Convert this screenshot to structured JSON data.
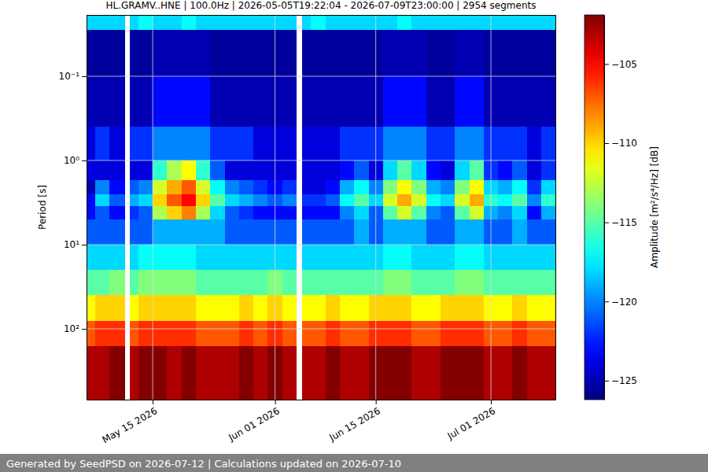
{
  "chart_data": {
    "type": "heatmap",
    "title": "HL.GRAMV..HNE | 100.0Hz | 2026-05-05T19:22:04 - 2026-07-09T23:00:00 | 2954 segments",
    "y_label": "Period [s]",
    "footer": "Generated by SeedPSD on 2026-07-12 | Calculations updated on 2026-07-10",
    "log": "y",
    "grid": true,
    "xlim": [
      "2026-05-05T19:22",
      "2026-07-09T23:00"
    ],
    "xticks": [
      {
        "value": "2026-05-15",
        "label": "May 15 2026"
      },
      {
        "value": "2026-06-01",
        "label": "Jun 01 2026"
      },
      {
        "value": "2026-06-15",
        "label": "Jun 15 2026"
      },
      {
        "value": "2026-07-01",
        "label": "Jul 01 2026"
      }
    ],
    "ylim": [
      693,
      0.0187
    ],
    "yticks": [
      {
        "value": 0.1,
        "label": "10⁻¹"
      },
      {
        "value": 1,
        "label": "10⁰"
      },
      {
        "value": 10,
        "label": "10¹"
      },
      {
        "value": 100,
        "label": "10²"
      }
    ],
    "x": [
      "2026-05-05T19:22",
      "2026-05-07",
      "2026-05-09",
      "2026-05-11T03:00",
      "2026-05-11T19:00",
      "2026-05-13",
      "2026-05-15",
      "2026-05-17",
      "2026-05-19",
      "2026-05-21",
      "2026-05-23",
      "2026-05-25",
      "2026-05-27",
      "2026-05-29",
      "2026-05-31",
      "2026-06-02",
      "2026-06-03T22:00",
      "2026-06-04T17:00",
      "2026-06-06",
      "2026-06-08",
      "2026-06-10",
      "2026-06-12",
      "2026-06-14",
      "2026-06-16",
      "2026-06-18",
      "2026-06-20",
      "2026-06-22",
      "2026-06-24",
      "2026-06-26",
      "2026-06-28",
      "2026-06-30",
      "2026-07-02",
      "2026-07-04",
      "2026-07-06",
      "2026-07-08",
      "2026-07-09T23:00"
    ],
    "y": [
      0.0187,
      0.028,
      0.1,
      0.4,
      1,
      1.7,
      2.5,
      3.5,
      5,
      10,
      20,
      40,
      80,
      160,
      693
    ],
    "values": [
      [
        -118,
        -125.5,
        -125,
        -124,
        -124,
        -125,
        -123,
        -123,
        -121,
        -118,
        -115,
        -111,
        -107,
        -103
      ],
      [
        -118,
        -125.5,
        -125,
        -122,
        -124,
        -120,
        -118,
        -121,
        -121,
        -118,
        -115,
        -110,
        -106,
        -103
      ],
      [
        -118,
        -125.5,
        -125,
        -124,
        -124,
        -123,
        -121,
        -123,
        -121,
        -118,
        -114,
        -110,
        -106,
        -102
      ],
      [
        null,
        null,
        null,
        null,
        null,
        null,
        null,
        null,
        null,
        null,
        null,
        null,
        null,
        null
      ],
      [
        -118,
        -125.5,
        -125,
        -122,
        -124,
        -121,
        -119,
        -122,
        -121,
        -118,
        -115,
        -111,
        -107,
        -103
      ],
      [
        -117,
        -125.5,
        -125,
        -122,
        -124,
        -120,
        -118,
        -121,
        -121,
        -117,
        -114,
        -110,
        -106,
        -102
      ],
      [
        -118,
        -125,
        -123,
        -120,
        -116,
        -112,
        -110,
        -113,
        -119,
        -117,
        -114,
        -110,
        -106,
        -102
      ],
      [
        -118,
        -125,
        -123,
        -120,
        -113,
        -109,
        -107,
        -110,
        -119,
        -117,
        -114,
        -110,
        -106,
        -103
      ],
      [
        -117,
        -125,
        -123,
        -120,
        -111,
        -107,
        -105,
        -108,
        -119,
        -117,
        -114,
        -110,
        -106,
        -102
      ],
      [
        -118,
        -125,
        -123,
        -120,
        -116,
        -112,
        -110,
        -113,
        -119,
        -118,
        -115,
        -111,
        -107,
        -103
      ],
      [
        -118,
        -125.5,
        -125,
        -122,
        -121,
        -117,
        -115,
        -118,
        -119,
        -118,
        -115,
        -111,
        -107,
        -103
      ],
      [
        -118,
        -125.5,
        -125,
        -122,
        -124,
        -120,
        -118,
        -121,
        -121,
        -118,
        -115,
        -111,
        -107,
        -103
      ],
      [
        -118,
        -125.5,
        -125,
        -122,
        -124,
        -121,
        -119,
        -122,
        -121,
        -118,
        -115,
        -110,
        -106,
        -102
      ],
      [
        -118,
        -125.5,
        -125,
        -124,
        -124,
        -122,
        -120,
        -123,
        -121,
        -118,
        -115,
        -111,
        -107,
        -103
      ],
      [
        -118,
        -125.5,
        -125,
        -124,
        -124,
        -123,
        -121,
        -123,
        -121,
        -118,
        -114,
        -110,
        -106,
        -102
      ],
      [
        -118,
        -125.5,
        -125,
        -124,
        -124,
        -122,
        -120,
        -123,
        -121,
        -118,
        -115,
        -111,
        -107,
        -103
      ],
      [
        null,
        null,
        null,
        null,
        null,
        null,
        null,
        null,
        null,
        null,
        null,
        null,
        null,
        null
      ],
      [
        -118,
        -125.5,
        -125,
        -124,
        -124,
        -124,
        -122,
        -123,
        -121,
        -118,
        -115,
        -111,
        -107,
        -103
      ],
      [
        -117,
        -125.5,
        -125,
        -124,
        -124,
        -124,
        -122,
        -123,
        -121,
        -118,
        -115,
        -111,
        -107,
        -103
      ],
      [
        -118,
        -125.5,
        -125,
        -124,
        -124,
        -123,
        -121,
        -123,
        -121,
        -118,
        -115,
        -110,
        -106,
        -102
      ],
      [
        -118,
        -125.5,
        -125,
        -122,
        -123,
        -119,
        -117,
        -120,
        -121,
        -118,
        -115,
        -111,
        -107,
        -103
      ],
      [
        -118,
        -125.5,
        -125,
        -122,
        -121,
        -117,
        -115,
        -118,
        -119,
        -118,
        -115,
        -111,
        -107,
        -103
      ],
      [
        -118,
        -125.5,
        -125,
        -122,
        -124,
        -120,
        -118,
        -121,
        -121,
        -118,
        -115,
        -110,
        -106,
        -102
      ],
      [
        -118,
        -125,
        -123,
        -120,
        -118,
        -114,
        -112,
        -115,
        -119,
        -117,
        -114,
        -110,
        -106,
        -102
      ],
      [
        -117,
        -125,
        -123,
        -120,
        -115,
        -111,
        -109,
        -112,
        -119,
        -117,
        -114,
        -110,
        -106,
        -102
      ],
      [
        -118,
        -125,
        -123,
        -120,
        -118,
        -114,
        -112,
        -115,
        -119,
        -118,
        -115,
        -111,
        -107,
        -103
      ],
      [
        -118,
        -125.5,
        -125,
        -122,
        -123,
        -119,
        -117,
        -120,
        -121,
        -118,
        -115,
        -111,
        -107,
        -103
      ],
      [
        -118,
        -125.5,
        -125,
        -122,
        -124,
        -120,
        -118,
        -121,
        -121,
        -118,
        -115,
        -110,
        -106,
        -102
      ],
      [
        -118,
        -125,
        -123,
        -120,
        -118,
        -114,
        -112,
        -115,
        -119,
        -117,
        -114,
        -110,
        -106,
        -102
      ],
      [
        -118,
        -125,
        -123,
        -120,
        -115,
        -111,
        -109,
        -112,
        -119,
        -117,
        -114,
        -110,
        -106,
        -102
      ],
      [
        -118,
        -125.5,
        -125,
        -122,
        -122,
        -118,
        -116,
        -119,
        -121,
        -118,
        -115,
        -111,
        -107,
        -103
      ],
      [
        -118,
        -125.5,
        -125,
        -122,
        -123,
        -119,
        -117,
        -120,
        -121,
        -118,
        -115,
        -111,
        -107,
        -103
      ],
      [
        -118,
        -125.5,
        -125,
        -122,
        -121,
        -117,
        -115,
        -118,
        -119,
        -118,
        -115,
        -110,
        -106,
        -102
      ],
      [
        -118,
        -125.5,
        -125,
        -124,
        -124,
        -122,
        -120,
        -123,
        -121,
        -118,
        -115,
        -111,
        -107,
        -103
      ],
      [
        -118,
        -125.5,
        -125,
        -122,
        -122,
        -118,
        -116,
        -119,
        -121,
        -118,
        -115,
        -111,
        -107,
        -103
      ]
    ],
    "colorbar": {
      "label": "Amplitude [m²/s⁴/Hz] [dB]",
      "range": [
        -126.2,
        -101.9
      ],
      "ticks": [
        {
          "value": -105,
          "label": "−105"
        },
        {
          "value": -110,
          "label": "−110"
        },
        {
          "value": -115,
          "label": "−115"
        },
        {
          "value": -120,
          "label": "−120"
        },
        {
          "value": -125,
          "label": "−125"
        }
      ]
    }
  }
}
